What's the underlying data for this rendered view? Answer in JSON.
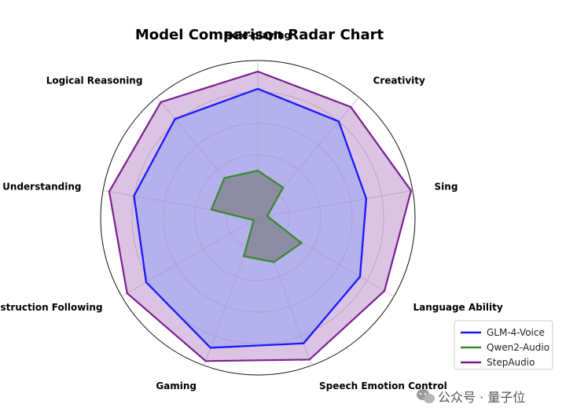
{
  "chart_data": {
    "type": "radar",
    "title": "Model Comparison Radar Chart",
    "axes": [
      "Role-playing",
      "Creativity",
      "Sing",
      "Language Ability",
      "Speech Emotion Control",
      "Gaming",
      "Voice Instruction Following",
      "Voice Understanding",
      "Logical Reasoning"
    ],
    "rlim": [
      0,
      1
    ],
    "grid": true,
    "legend_position": "bottom-right",
    "series": [
      {
        "name": "GLM-4-Voice",
        "color": "#1a1aff",
        "fill": false,
        "values": [
          0.82,
          0.8,
          0.7,
          0.75,
          0.85,
          0.88,
          0.82,
          0.8,
          0.82
        ]
      },
      {
        "name": "Qwen2-Audio",
        "color": "#3a8a2a",
        "fill": true,
        "fill_color": "#7f7f7f",
        "fill_opacity": 0.55,
        "values": [
          0.3,
          0.25,
          0.06,
          0.32,
          0.3,
          0.26,
          0.03,
          0.3,
          0.33
        ]
      },
      {
        "name": "StepAudio",
        "color": "#7b1f8f",
        "fill": true,
        "fill_color": "#b07dc0",
        "fill_opacity": 0.45,
        "values": [
          0.93,
          0.92,
          0.99,
          0.93,
          0.96,
          0.97,
          0.96,
          0.96,
          0.96
        ]
      }
    ]
  },
  "watermark": {
    "text": "公众号 · 量子位",
    "icon": "wechat-icon"
  }
}
